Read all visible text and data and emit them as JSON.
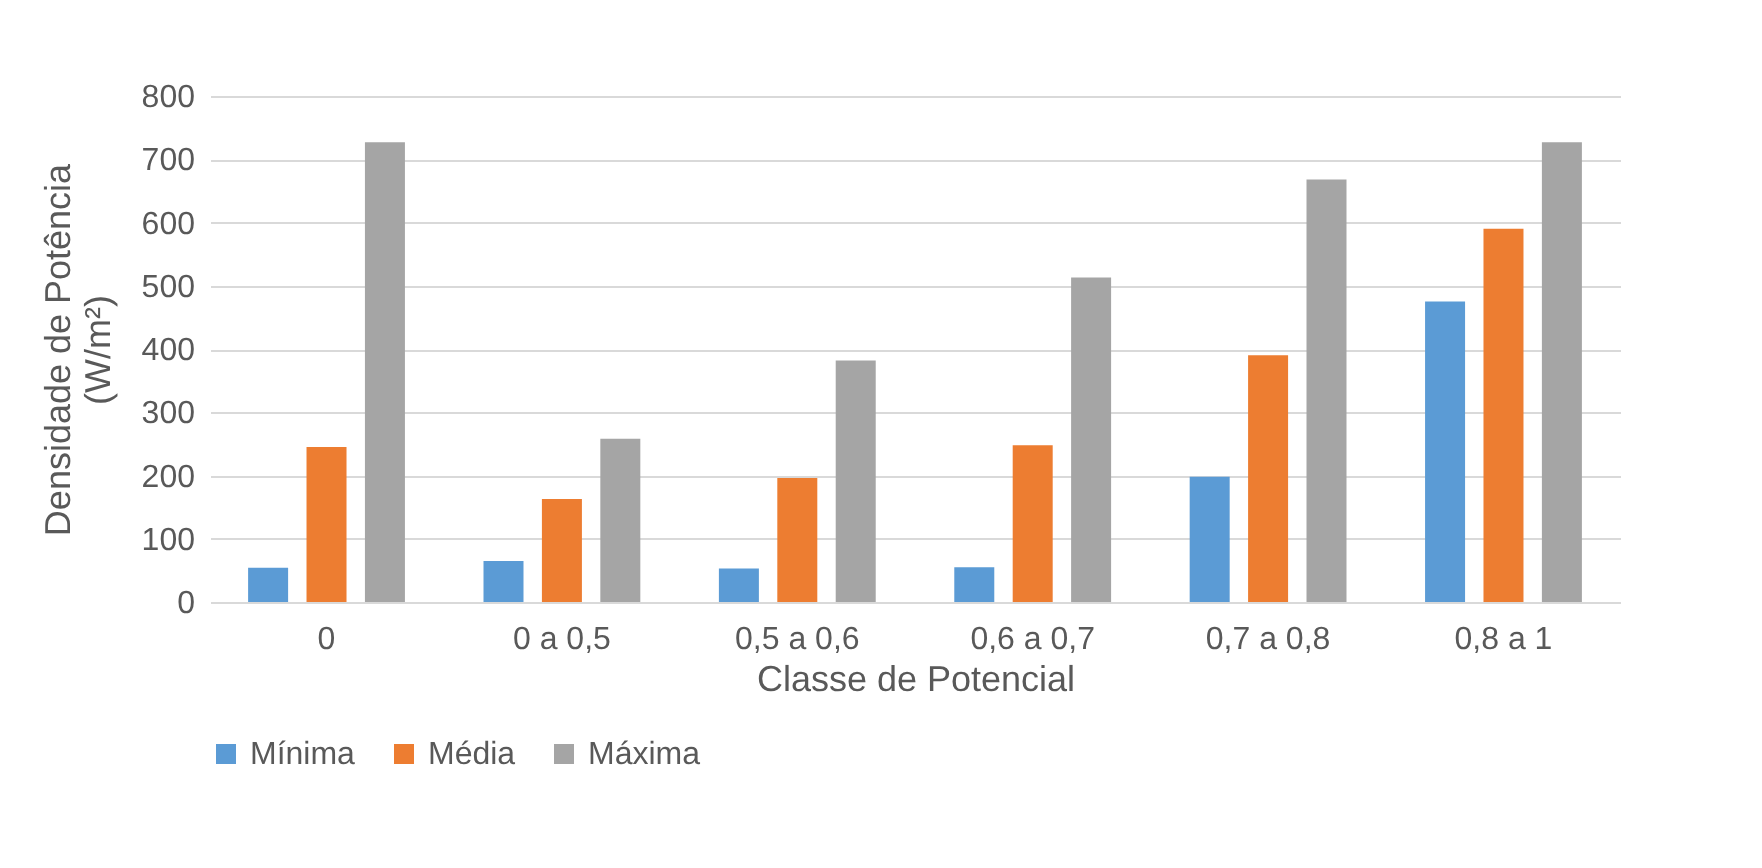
{
  "chart_data": {
    "type": "bar",
    "xlabel": "Classe de Potencial",
    "ylabel": "Densidade de Potência\n(W/m²)",
    "categories": [
      "0",
      "0 a 0,5",
      "0,5 a 0,6",
      "0,6 a 0,7",
      "0,7 a 0,8",
      "0,8 a 1"
    ],
    "series": [
      {
        "name": "Mínima",
        "color": "#5b9bd5",
        "values": [
          54,
          65,
          53,
          55,
          198,
          475
        ]
      },
      {
        "name": "Média",
        "color": "#ed7d31",
        "values": [
          245,
          163,
          196,
          248,
          390,
          590
        ]
      },
      {
        "name": "Máxima",
        "color": "#a5a5a5",
        "values": [
          727,
          258,
          382,
          513,
          668,
          727
        ]
      }
    ],
    "ylim": [
      0,
      800
    ],
    "yticks": [
      0,
      100,
      200,
      300,
      400,
      500,
      600,
      700,
      800
    ],
    "grid": "y",
    "legend": "bottom left"
  }
}
